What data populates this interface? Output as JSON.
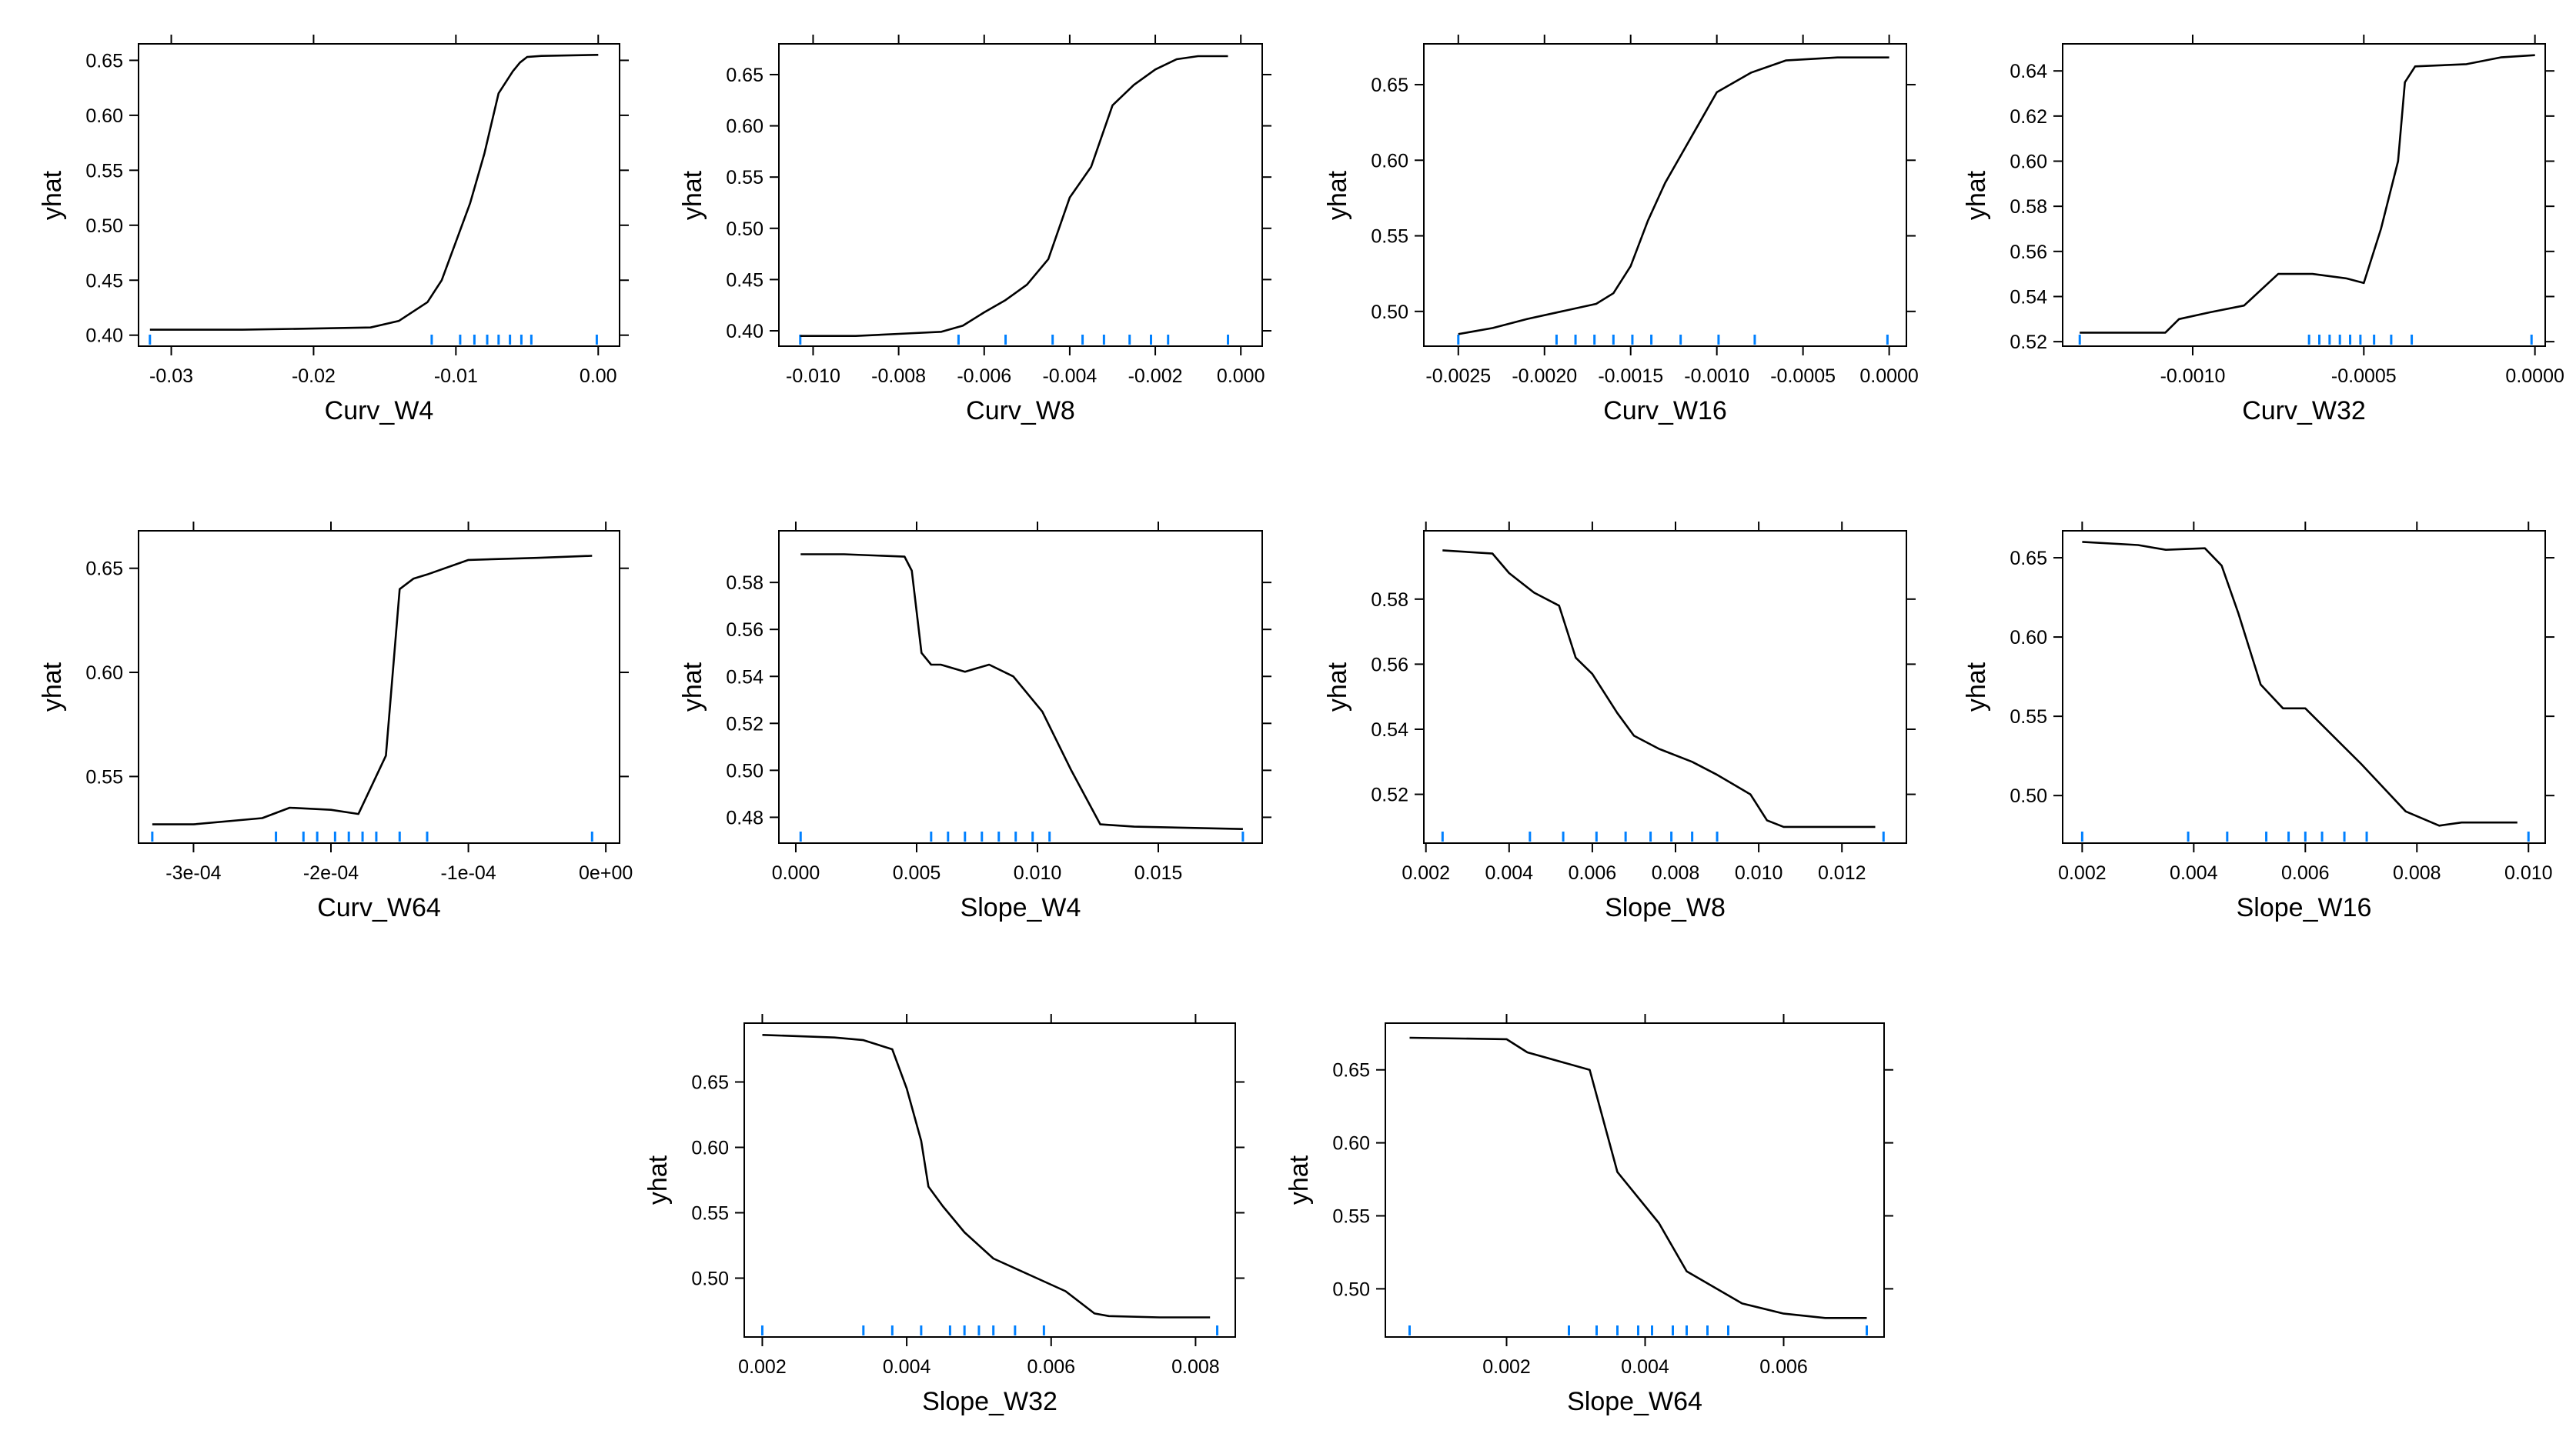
{
  "colors": {
    "line": "#000000",
    "frame": "#000000",
    "rug": "#0080ff",
    "background": "#ffffff"
  },
  "chart_data": [
    {
      "type": "line",
      "title": "",
      "xlabel": "Curv_W4",
      "ylabel": "yhat",
      "xlim": [
        -0.0323,
        0.0015
      ],
      "ylim": [
        0.39,
        0.665
      ],
      "xticks": [
        -0.03,
        -0.02,
        -0.01,
        0.0
      ],
      "xtick_labels": [
        "-0.03",
        "-0.02",
        "-0.01",
        "0.00"
      ],
      "yticks": [
        0.4,
        0.45,
        0.5,
        0.55,
        0.6,
        0.65
      ],
      "ytick_labels": [
        "0.40",
        "0.45",
        "0.50",
        "0.55",
        "0.60",
        "0.65"
      ],
      "x": [
        -0.0315,
        -0.025,
        -0.02,
        -0.016,
        -0.014,
        -0.012,
        -0.011,
        -0.01,
        -0.009,
        -0.008,
        -0.007,
        -0.006,
        -0.0055,
        -0.005,
        -0.004,
        0.0
      ],
      "y": [
        0.405,
        0.405,
        0.406,
        0.407,
        0.413,
        0.43,
        0.45,
        0.485,
        0.52,
        0.565,
        0.62,
        0.64,
        0.648,
        0.653,
        0.654,
        0.655
      ],
      "rug": [
        -0.0315,
        -0.0117,
        -0.0097,
        -0.0087,
        -0.0078,
        -0.007,
        -0.0062,
        -0.0054,
        -0.0047,
        -0.0001
      ]
    },
    {
      "type": "line",
      "title": "",
      "xlabel": "Curv_W8",
      "ylabel": "yhat",
      "xlim": [
        -0.0108,
        0.0005
      ],
      "ylim": [
        0.385,
        0.68
      ],
      "xticks": [
        -0.01,
        -0.008,
        -0.006,
        -0.004,
        -0.002,
        0.0
      ],
      "xtick_labels": [
        "-0.010",
        "-0.008",
        "-0.006",
        "-0.004",
        "-0.002",
        "0.000"
      ],
      "yticks": [
        0.4,
        0.45,
        0.5,
        0.55,
        0.6,
        0.65
      ],
      "ytick_labels": [
        "0.40",
        "0.45",
        "0.50",
        "0.55",
        "0.60",
        "0.65"
      ],
      "x": [
        -0.0103,
        -0.009,
        -0.008,
        -0.007,
        -0.0065,
        -0.006,
        -0.0055,
        -0.005,
        -0.0045,
        -0.004,
        -0.0035,
        -0.003,
        -0.0025,
        -0.002,
        -0.0015,
        -0.001,
        -0.0003
      ],
      "y": [
        0.395,
        0.395,
        0.397,
        0.399,
        0.405,
        0.418,
        0.43,
        0.445,
        0.47,
        0.53,
        0.56,
        0.62,
        0.64,
        0.655,
        0.665,
        0.668,
        0.668
      ],
      "rug": [
        -0.0103,
        -0.0066,
        -0.0055,
        -0.0044,
        -0.0037,
        -0.0032,
        -0.0026,
        -0.0021,
        -0.0017,
        -0.0003
      ]
    },
    {
      "type": "line",
      "title": "",
      "xlabel": "Curv_W16",
      "ylabel": "yhat",
      "xlim": [
        -0.0027,
        0.0001
      ],
      "ylim": [
        0.477,
        0.677
      ],
      "xticks": [
        -0.0025,
        -0.002,
        -0.0015,
        -0.001,
        -0.0005,
        0.0
      ],
      "xtick_labels": [
        "-0.0025",
        "-0.0020",
        "-0.0015",
        "-0.0010",
        "-0.0005",
        "0.0000"
      ],
      "yticks": [
        0.5,
        0.55,
        0.6,
        0.65
      ],
      "ytick_labels": [
        "0.50",
        "0.55",
        "0.60",
        "0.65"
      ],
      "x": [
        -0.0025,
        -0.0023,
        -0.0021,
        -0.0019,
        -0.0017,
        -0.0016,
        -0.0015,
        -0.0014,
        -0.0013,
        -0.0012,
        -0.0011,
        -0.001,
        -0.0008,
        -0.0006,
        -0.0003,
        0.0
      ],
      "y": [
        0.485,
        0.489,
        0.495,
        0.5,
        0.505,
        0.512,
        0.53,
        0.56,
        0.585,
        0.605,
        0.625,
        0.645,
        0.658,
        0.666,
        0.668,
        0.668
      ],
      "rug": [
        -0.0025,
        -0.00193,
        -0.00182,
        -0.00171,
        -0.0016,
        -0.00149,
        -0.00138,
        -0.00121,
        -0.00099,
        -0.00078,
        -1e-05
      ]
    },
    {
      "type": "line",
      "title": "",
      "xlabel": "Curv_W32",
      "ylabel": "yhat",
      "xlim": [
        -0.00138,
        3e-05
      ],
      "ylim": [
        0.518,
        0.652
      ],
      "xticks": [
        -0.001,
        -0.0005,
        0.0
      ],
      "xtick_labels": [
        "-0.0010",
        "-0.0005",
        "0.0000"
      ],
      "yticks": [
        0.52,
        0.54,
        0.56,
        0.58,
        0.6,
        0.62,
        0.64
      ],
      "ytick_labels": [
        "0.52",
        "0.54",
        "0.56",
        "0.58",
        "0.60",
        "0.62",
        "0.64"
      ],
      "x": [
        -0.00133,
        -0.0012,
        -0.00108,
        -0.00104,
        -0.00095,
        -0.00085,
        -0.00075,
        -0.00065,
        -0.00055,
        -0.0005,
        -0.00045,
        -0.0004,
        -0.00038,
        -0.00035,
        -0.0002,
        -0.0001,
        0.0
      ],
      "y": [
        0.524,
        0.524,
        0.524,
        0.53,
        0.533,
        0.536,
        0.55,
        0.55,
        0.548,
        0.546,
        0.57,
        0.6,
        0.635,
        0.642,
        0.643,
        0.646,
        0.647
      ],
      "rug": [
        -0.00133,
        -0.00066,
        -0.00063,
        -0.0006,
        -0.00057,
        -0.00054,
        -0.00051,
        -0.00047,
        -0.00042,
        -0.00036,
        -1e-05
      ]
    },
    {
      "type": "line",
      "title": "",
      "xlabel": "Curv_W64",
      "ylabel": "yhat",
      "xlim": [
        -0.00034,
        1e-05
      ],
      "ylim": [
        0.518,
        0.668
      ],
      "xticks": [
        -0.0003,
        -0.0002,
        -0.0001,
        0.0
      ],
      "xtick_labels": [
        "-3e-04",
        "-2e-04",
        "-1e-04",
        "0e+00"
      ],
      "yticks": [
        0.55,
        0.6,
        0.65
      ],
      "ytick_labels": [
        "0.55",
        "0.60",
        "0.65"
      ],
      "x": [
        -0.00033,
        -0.0003,
        -0.00025,
        -0.00023,
        -0.0002,
        -0.00018,
        -0.00016,
        -0.00015,
        -0.00014,
        -0.00013,
        -0.0001,
        -5e-05,
        -1e-05
      ],
      "y": [
        0.527,
        0.527,
        0.53,
        0.535,
        0.534,
        0.532,
        0.56,
        0.64,
        0.645,
        0.647,
        0.654,
        0.655,
        0.656
      ],
      "rug": [
        -0.00033,
        -0.00024,
        -0.00022,
        -0.00021,
        -0.000197,
        -0.000187,
        -0.000177,
        -0.000167,
        -0.00015,
        -0.00013,
        -1e-05
      ]
    },
    {
      "type": "line",
      "title": "",
      "xlabel": "Slope_W4",
      "ylabel": "yhat",
      "xlim": [
        -0.0007,
        0.0193
      ],
      "ylim": [
        0.469,
        0.602
      ],
      "xticks": [
        0.0,
        0.005,
        0.01,
        0.015
      ],
      "xtick_labels": [
        "0.000",
        "0.005",
        "0.010",
        "0.015"
      ],
      "yticks": [
        0.48,
        0.5,
        0.52,
        0.54,
        0.56,
        0.58
      ],
      "ytick_labels": [
        "0.48",
        "0.50",
        "0.52",
        "0.54",
        "0.56",
        "0.58"
      ],
      "x": [
        0.0002,
        0.002,
        0.0045,
        0.0048,
        0.0052,
        0.0056,
        0.006,
        0.007,
        0.008,
        0.009,
        0.0102,
        0.0114,
        0.0126,
        0.014,
        0.0185
      ],
      "y": [
        0.592,
        0.592,
        0.591,
        0.585,
        0.55,
        0.545,
        0.545,
        0.542,
        0.545,
        0.54,
        0.525,
        0.5,
        0.477,
        0.476,
        0.475
      ],
      "rug": [
        0.0002,
        0.0056,
        0.0063,
        0.007,
        0.0077,
        0.0084,
        0.0091,
        0.0098,
        0.0105,
        0.0185
      ]
    },
    {
      "type": "line",
      "title": "",
      "xlabel": "Slope_W8",
      "ylabel": "yhat",
      "xlim": [
        0.00195,
        0.01355
      ],
      "ylim": [
        0.505,
        0.601
      ],
      "xticks": [
        0.002,
        0.004,
        0.006,
        0.008,
        0.01,
        0.012
      ],
      "xtick_labels": [
        "0.002",
        "0.004",
        "0.006",
        "0.008",
        "0.010",
        "0.012"
      ],
      "yticks": [
        0.52,
        0.54,
        0.56,
        0.58
      ],
      "ytick_labels": [
        "0.52",
        "0.54",
        "0.56",
        "0.58"
      ],
      "x": [
        0.0024,
        0.0036,
        0.004,
        0.0046,
        0.0052,
        0.0056,
        0.006,
        0.0066,
        0.007,
        0.0076,
        0.0084,
        0.009,
        0.0098,
        0.0102,
        0.0106,
        0.0116,
        0.0128
      ],
      "y": [
        0.595,
        0.594,
        0.588,
        0.582,
        0.578,
        0.562,
        0.557,
        0.545,
        0.538,
        0.534,
        0.53,
        0.526,
        0.52,
        0.512,
        0.51,
        0.51,
        0.51
      ],
      "rug": [
        0.0024,
        0.0045,
        0.0053,
        0.0061,
        0.0068,
        0.0074,
        0.0079,
        0.0084,
        0.009,
        0.013
      ]
    },
    {
      "type": "line",
      "title": "",
      "xlabel": "Slope_W16",
      "ylabel": "yhat",
      "xlim": [
        0.00165,
        0.0103
      ],
      "ylim": [
        0.47,
        0.667
      ],
      "xticks": [
        0.002,
        0.004,
        0.006,
        0.008,
        0.01
      ],
      "xtick_labels": [
        "0.002",
        "0.004",
        "0.006",
        "0.008",
        "0.010"
      ],
      "yticks": [
        0.5,
        0.55,
        0.6,
        0.65
      ],
      "ytick_labels": [
        "0.50",
        "0.55",
        "0.60",
        "0.65"
      ],
      "x": [
        0.002,
        0.003,
        0.0035,
        0.0042,
        0.0045,
        0.0048,
        0.0052,
        0.0056,
        0.006,
        0.007,
        0.0078,
        0.0084,
        0.0088,
        0.0094,
        0.0098
      ],
      "y": [
        0.66,
        0.658,
        0.655,
        0.656,
        0.645,
        0.615,
        0.57,
        0.555,
        0.555,
        0.52,
        0.49,
        0.481,
        0.483,
        0.483,
        0.483
      ],
      "rug": [
        0.002,
        0.0039,
        0.0046,
        0.0053,
        0.0057,
        0.006,
        0.0063,
        0.0067,
        0.0071,
        0.01
      ]
    },
    {
      "type": "line",
      "title": "",
      "xlabel": "Slope_W32",
      "ylabel": "yhat",
      "xlim": [
        0.00175,
        0.00855
      ],
      "ylim": [
        0.455,
        0.695
      ],
      "xticks": [
        0.002,
        0.004,
        0.006,
        0.008
      ],
      "xtick_labels": [
        "0.002",
        "0.004",
        "0.006",
        "0.008"
      ],
      "yticks": [
        0.5,
        0.55,
        0.6,
        0.65
      ],
      "ytick_labels": [
        "0.50",
        "0.55",
        "0.60",
        "0.65"
      ],
      "x": [
        0.002,
        0.003,
        0.0034,
        0.0038,
        0.004,
        0.0042,
        0.0043,
        0.0045,
        0.0048,
        0.0052,
        0.0058,
        0.0062,
        0.0066,
        0.0068,
        0.0075,
        0.0082
      ],
      "y": [
        0.686,
        0.684,
        0.682,
        0.675,
        0.645,
        0.605,
        0.57,
        0.555,
        0.535,
        0.515,
        0.5,
        0.49,
        0.473,
        0.471,
        0.47,
        0.47
      ],
      "rug": [
        0.002,
        0.0034,
        0.0038,
        0.0042,
        0.0046,
        0.0048,
        0.005,
        0.0052,
        0.0055,
        0.0059,
        0.0083
      ]
    },
    {
      "type": "line",
      "title": "",
      "xlabel": "Slope_W64",
      "ylabel": "yhat",
      "xlim": [
        0.00025,
        0.00745
      ],
      "ylim": [
        0.467,
        0.682
      ],
      "xticks": [
        0.002,
        0.004,
        0.006
      ],
      "xtick_labels": [
        "0.002",
        "0.004",
        "0.006"
      ],
      "yticks": [
        0.5,
        0.55,
        0.6,
        0.65
      ],
      "ytick_labels": [
        "0.50",
        "0.55",
        "0.60",
        "0.65"
      ],
      "x": [
        0.0006,
        0.002,
        0.0023,
        0.0032,
        0.0036,
        0.0042,
        0.0046,
        0.0054,
        0.006,
        0.0066,
        0.0072
      ],
      "y": [
        0.672,
        0.671,
        0.662,
        0.65,
        0.58,
        0.545,
        0.512,
        0.49,
        0.483,
        0.48,
        0.48
      ],
      "rug": [
        0.0006,
        0.0029,
        0.0033,
        0.0036,
        0.0039,
        0.0041,
        0.0044,
        0.0046,
        0.0049,
        0.0052,
        0.0072
      ]
    }
  ]
}
